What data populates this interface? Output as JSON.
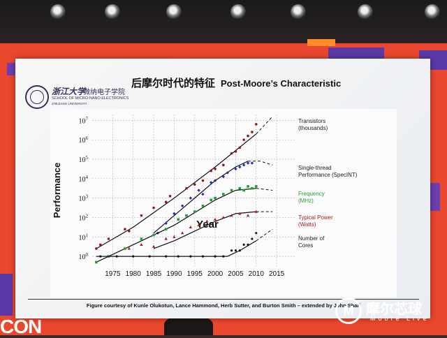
{
  "slide": {
    "school_cn_line1": "浙江大学",
    "school_cn_line2": "微纳电子学院",
    "school_en_line1": "SCHOOL OF MICRO-NANO ELECTRONICS",
    "school_en_line2": "ZHEJIANG UNIVERSITY",
    "title_cn": "后摩尔时代的特征",
    "title_en": "Post-Moore’s Characteristic",
    "caption": "Figure courtesy of Kunle Olukotun, Lance Hammond, Herb Sutter, and Burton Smith – extended by John Shalf"
  },
  "watermark": {
    "cn": "摩尔芯球",
    "en": "Moore Live",
    "mark": "M"
  },
  "event_logo_fragment": "CON",
  "chart_data": {
    "type": "scatter",
    "xlabel": "Year",
    "ylabel": "Performance",
    "x_ticks": [
      1975,
      1980,
      1985,
      1990,
      1995,
      2000,
      2005,
      2010,
      2015
    ],
    "y_ticks": [
      "10^0",
      "10^1",
      "10^2",
      "10^3",
      "10^4",
      "10^5",
      "10^6",
      "10^7"
    ],
    "xlim": [
      1970,
      2016
    ],
    "ylim_log10": [
      -0.5,
      7.3
    ],
    "grid": true,
    "series": [
      {
        "name": "Transistors",
        "unit": "(thousands)",
        "color": "#8b1a1a",
        "label_color": "#222222",
        "trend": [
          [
            1971,
            0.4
          ],
          [
            1980,
            1.5
          ],
          [
            1990,
            3.0
          ],
          [
            2000,
            4.6
          ],
          [
            2010,
            6.3
          ]
        ],
        "projection": [
          [
            2010,
            6.3
          ],
          [
            2014,
            7.2
          ]
        ],
        "points": [
          [
            1971,
            0.4
          ],
          [
            1972,
            0.6
          ],
          [
            1974,
            0.9
          ],
          [
            1978,
            1.4
          ],
          [
            1979,
            1.3
          ],
          [
            1982,
            2.1
          ],
          [
            1985,
            2.5
          ],
          [
            1988,
            2.8
          ],
          [
            1989,
            3.1
          ],
          [
            1993,
            3.5
          ],
          [
            1995,
            3.7
          ],
          [
            1997,
            3.9
          ],
          [
            1999,
            4.4
          ],
          [
            2000,
            4.5
          ],
          [
            2002,
            4.7
          ],
          [
            2004,
            5.3
          ],
          [
            2005,
            5.4
          ],
          [
            2006,
            5.6
          ],
          [
            2007,
            6.0
          ],
          [
            2008,
            6.2
          ],
          [
            2009,
            6.4
          ],
          [
            2010,
            6.8
          ]
        ]
      },
      {
        "name": "Single-thread",
        "unit": "Performance (SpecINT)",
        "color": "#1f2db3",
        "label_color": "#222222",
        "trend": [
          [
            1985,
            1.2
          ],
          [
            1990,
            2.1
          ],
          [
            1995,
            3.0
          ],
          [
            2000,
            3.9
          ],
          [
            2005,
            4.6
          ],
          [
            2008,
            4.9
          ]
        ],
        "projection": [
          [
            2008,
            4.9
          ],
          [
            2011,
            4.9
          ],
          [
            2014,
            4.7
          ]
        ],
        "points": [
          [
            1986,
            1.2
          ],
          [
            1988,
            1.7
          ],
          [
            1990,
            2.2
          ],
          [
            1992,
            2.6
          ],
          [
            1994,
            3.0
          ],
          [
            1996,
            3.4
          ],
          [
            1997,
            3.2
          ],
          [
            1999,
            3.8
          ],
          [
            2000,
            3.9
          ],
          [
            2002,
            4.1
          ],
          [
            2003,
            4.3
          ],
          [
            2005,
            4.5
          ],
          [
            2006,
            4.6
          ],
          [
            2007,
            4.7
          ],
          [
            2008,
            4.8
          ],
          [
            2009,
            4.8
          ]
        ]
      },
      {
        "name": "Frequency",
        "unit": "(MHz)",
        "color": "#1f9e3a",
        "label_color": "#1f9e3a",
        "trend": [
          [
            1971,
            -0.3
          ],
          [
            1980,
            0.6
          ],
          [
            1990,
            1.6
          ],
          [
            2000,
            2.9
          ],
          [
            2005,
            3.4
          ],
          [
            2010,
            3.5
          ]
        ],
        "projection": [
          [
            2010,
            3.5
          ],
          [
            2014,
            3.4
          ]
        ],
        "points": [
          [
            1971,
            -0.3
          ],
          [
            1974,
            0.0
          ],
          [
            1978,
            0.4
          ],
          [
            1982,
            0.9
          ],
          [
            1985,
            1.1
          ],
          [
            1988,
            1.4
          ],
          [
            1991,
            1.9
          ],
          [
            1993,
            2.1
          ],
          [
            1995,
            2.3
          ],
          [
            1997,
            2.6
          ],
          [
            1999,
            2.9
          ],
          [
            2000,
            3.0
          ],
          [
            2002,
            3.2
          ],
          [
            2004,
            3.4
          ],
          [
            2006,
            3.5
          ],
          [
            2007,
            3.4
          ],
          [
            2008,
            3.6
          ],
          [
            2009,
            3.5
          ],
          [
            2010,
            3.6
          ]
        ]
      },
      {
        "name": "Typical Power",
        "unit": "(Watts)",
        "color": "#a52020",
        "label_color": "#a52020",
        "trend": [
          [
            1985,
            0.4
          ],
          [
            1990,
            0.8
          ],
          [
            1995,
            1.3
          ],
          [
            2000,
            1.8
          ],
          [
            2005,
            2.2
          ],
          [
            2010,
            2.3
          ]
        ],
        "projection": [
          [
            2010,
            2.3
          ],
          [
            2014,
            2.3
          ]
        ],
        "points": [
          [
            1979,
            0.4
          ],
          [
            1982,
            0.6
          ],
          [
            1985,
            0.5
          ],
          [
            1988,
            0.9
          ],
          [
            1990,
            1.0
          ],
          [
            1992,
            1.2
          ],
          [
            1994,
            1.5
          ],
          [
            1996,
            1.6
          ],
          [
            1998,
            1.8
          ],
          [
            2000,
            1.9
          ],
          [
            2002,
            2.0
          ],
          [
            2004,
            2.1
          ],
          [
            2006,
            2.2
          ],
          [
            2008,
            2.1
          ],
          [
            2010,
            2.3
          ]
        ]
      },
      {
        "name": "Number of",
        "unit": "Cores",
        "color": "#111111",
        "label_color": "#222222",
        "trend": [
          [
            1971,
            0
          ],
          [
            2003,
            0
          ],
          [
            2006,
            0.3
          ],
          [
            2010,
            0.8
          ]
        ],
        "projection": [
          [
            2010,
            0.8
          ],
          [
            2014,
            1.4
          ]
        ],
        "points": [
          [
            1972,
            0
          ],
          [
            1976,
            0
          ],
          [
            1980,
            0
          ],
          [
            1984,
            0
          ],
          [
            1988,
            0
          ],
          [
            1991,
            0
          ],
          [
            1994,
            0
          ],
          [
            1997,
            0
          ],
          [
            2000,
            0
          ],
          [
            2002,
            0
          ],
          [
            2004,
            0.3
          ],
          [
            2005,
            0.3
          ],
          [
            2006,
            0.3
          ],
          [
            2007,
            0.6
          ],
          [
            2008,
            0.6
          ],
          [
            2009,
            0.9
          ],
          [
            2010,
            1.2
          ]
        ]
      }
    ]
  }
}
